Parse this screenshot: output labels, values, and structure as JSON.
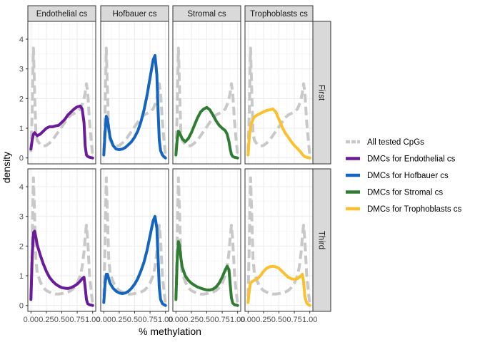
{
  "chart_data": {
    "type": "line",
    "xlabel": "% methylation",
    "ylabel": "density",
    "xlim": [
      -0.05,
      1.05
    ],
    "ylim": [
      -0.2,
      4.6
    ],
    "x_ticks": [
      0,
      0.25,
      0.5,
      0.75,
      1
    ],
    "x_tick_labels": [
      "0.00",
      "0.25",
      "0.50",
      "0.75",
      "1.00"
    ],
    "y_ticks": [
      0,
      1,
      2,
      3,
      4
    ],
    "y_tick_labels": [
      "0",
      "1",
      "2",
      "3",
      "4"
    ],
    "columns": [
      "Endothelial cs",
      "Hofbauer cs",
      "Stromal cs",
      "Trophoblasts cs"
    ],
    "rows": [
      "First",
      "Third"
    ],
    "grid": true,
    "legend_position": "right",
    "legend": [
      {
        "label": "All tested CpGs",
        "color": "#c8c8c8"
      },
      {
        "label": "DMCs for Endothelial cs",
        "color": "#6a1b9a"
      },
      {
        "label": "DMCs for Hofbauer cs",
        "color": "#1565c0"
      },
      {
        "label": "DMCs for Stromal cs",
        "color": "#2e7d32"
      },
      {
        "label": "DMCs for Trophoblasts cs",
        "color": "#fbc02d"
      }
    ],
    "x": [
      0,
      0.02,
      0.04,
      0.06,
      0.08,
      0.1,
      0.15,
      0.2,
      0.25,
      0.3,
      0.35,
      0.4,
      0.45,
      0.5,
      0.55,
      0.6,
      0.65,
      0.7,
      0.75,
      0.8,
      0.83,
      0.86,
      0.88,
      0.9,
      0.92,
      0.95,
      0.98,
      1.0
    ],
    "all_cpgs": {
      "First": [
        0.2,
        1.5,
        3.7,
        2.2,
        0.9,
        0.6,
        0.45,
        0.4,
        0.42,
        0.5,
        0.6,
        0.75,
        0.9,
        1.05,
        1.2,
        1.35,
        1.45,
        1.5,
        1.55,
        1.65,
        1.8,
        2.0,
        2.2,
        2.5,
        2.2,
        1.2,
        0.5,
        0.1
      ],
      "Third": [
        0.3,
        2.0,
        4.3,
        3.0,
        1.6,
        1.1,
        0.8,
        0.6,
        0.5,
        0.45,
        0.4,
        0.38,
        0.38,
        0.4,
        0.42,
        0.45,
        0.5,
        0.6,
        0.75,
        1.0,
        1.3,
        1.8,
        2.3,
        2.7,
        2.2,
        1.0,
        0.4,
        0.05
      ]
    },
    "panels": [
      {
        "column": "Endothelial cs",
        "row": "First",
        "name": "DMCs for Endothelial cs",
        "color": "#6a1b9a",
        "values": [
          0.3,
          0.6,
          0.8,
          0.85,
          0.8,
          0.75,
          0.8,
          0.9,
          1.0,
          1.05,
          1.05,
          1.08,
          1.1,
          1.2,
          1.3,
          1.45,
          1.55,
          1.65,
          1.72,
          1.75,
          1.65,
          1.2,
          0.4,
          0.1,
          0.05,
          0.02,
          0.01,
          0.0
        ]
      },
      {
        "column": "Hofbauer cs",
        "row": "First",
        "name": "DMCs for Hofbauer cs",
        "color": "#1565c0",
        "values": [
          0.1,
          0.8,
          1.4,
          1.3,
          1.0,
          0.7,
          0.42,
          0.3,
          0.28,
          0.3,
          0.35,
          0.45,
          0.55,
          0.7,
          0.9,
          1.2,
          1.6,
          2.1,
          2.7,
          3.3,
          3.45,
          2.8,
          1.6,
          0.6,
          0.25,
          0.1,
          0.03,
          0.0
        ]
      },
      {
        "column": "Stromal cs",
        "row": "First",
        "name": "DMCs for Stromal cs",
        "color": "#2e7d32",
        "values": [
          0.1,
          0.6,
          0.9,
          0.85,
          0.75,
          0.65,
          0.55,
          0.65,
          0.85,
          1.1,
          1.35,
          1.55,
          1.65,
          1.7,
          1.62,
          1.45,
          1.25,
          1.1,
          1.0,
          0.92,
          0.8,
          0.55,
          0.3,
          0.12,
          0.05,
          0.02,
          0.01,
          0.0
        ]
      },
      {
        "column": "Trophoblasts cs",
        "row": "First",
        "name": "DMCs for Trophoblasts cs",
        "color": "#fbc02d",
        "values": [
          0.1,
          0.7,
          1.05,
          1.2,
          1.3,
          1.38,
          1.45,
          1.5,
          1.55,
          1.6,
          1.62,
          1.65,
          1.55,
          1.3,
          1.05,
          0.85,
          0.7,
          0.55,
          0.42,
          0.32,
          0.25,
          0.18,
          0.12,
          0.08,
          0.04,
          0.02,
          0.01,
          0.0
        ]
      },
      {
        "column": "Endothelial cs",
        "row": "Third",
        "name": "DMCs for Endothelial cs",
        "color": "#6a1b9a",
        "values": [
          0.2,
          1.6,
          2.45,
          2.5,
          2.3,
          2.05,
          1.7,
          1.4,
          1.15,
          0.95,
          0.82,
          0.72,
          0.65,
          0.6,
          0.58,
          0.57,
          0.6,
          0.65,
          0.72,
          0.82,
          0.9,
          0.95,
          0.6,
          0.2,
          0.06,
          0.02,
          0.01,
          0.0
        ]
      },
      {
        "column": "Hofbauer cs",
        "row": "Third",
        "name": "DMCs for Hofbauer cs",
        "color": "#1565c0",
        "values": [
          0.1,
          0.7,
          1.05,
          1.05,
          0.9,
          0.75,
          0.58,
          0.48,
          0.42,
          0.4,
          0.42,
          0.48,
          0.58,
          0.72,
          0.9,
          1.15,
          1.45,
          1.85,
          2.35,
          2.85,
          3.0,
          2.6,
          1.6,
          0.6,
          0.2,
          0.06,
          0.02,
          0.0
        ]
      },
      {
        "column": "Stromal cs",
        "row": "Third",
        "name": "DMCs for Stromal cs",
        "color": "#2e7d32",
        "values": [
          0.2,
          1.5,
          2.15,
          2.0,
          1.6,
          1.3,
          1.0,
          0.85,
          0.75,
          0.68,
          0.62,
          0.58,
          0.55,
          0.52,
          0.52,
          0.55,
          0.62,
          0.75,
          0.95,
          1.2,
          1.32,
          1.2,
          0.7,
          0.25,
          0.08,
          0.02,
          0.01,
          0.0
        ]
      },
      {
        "column": "Trophoblasts cs",
        "row": "Third",
        "name": "DMCs for Trophoblasts cs",
        "color": "#fbc02d",
        "values": [
          0.1,
          0.5,
          0.75,
          0.8,
          0.82,
          0.85,
          0.9,
          1.0,
          1.15,
          1.25,
          1.3,
          1.32,
          1.3,
          1.25,
          1.15,
          1.05,
          0.95,
          0.9,
          0.88,
          0.9,
          0.95,
          1.0,
          1.05,
          0.8,
          0.3,
          0.08,
          0.02,
          0.0
        ]
      }
    ]
  }
}
